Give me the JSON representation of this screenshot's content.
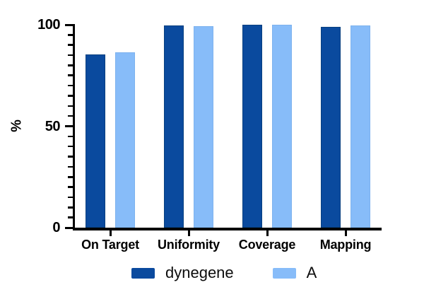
{
  "chart_data": {
    "type": "bar",
    "title": "",
    "ylabel": "%",
    "xlabel": "",
    "categories": [
      "On Target",
      "Uniformity",
      "Coverage",
      "Mapping"
    ],
    "series": [
      {
        "name": "dynegene",
        "color": "#0A4A9E",
        "border_color": "#08407F",
        "values": [
          85.5,
          99.7,
          100,
          99.1
        ]
      },
      {
        "name": "A",
        "color": "#87BCF9",
        "border_color": "#7DB2EE",
        "values": [
          86.5,
          99.2,
          100,
          99.8
        ]
      }
    ],
    "ylim": [
      0,
      100
    ],
    "y_major_ticks": [
      0,
      50,
      100
    ],
    "y_minor_step": 5,
    "grid": false,
    "legend_position": "bottom"
  }
}
